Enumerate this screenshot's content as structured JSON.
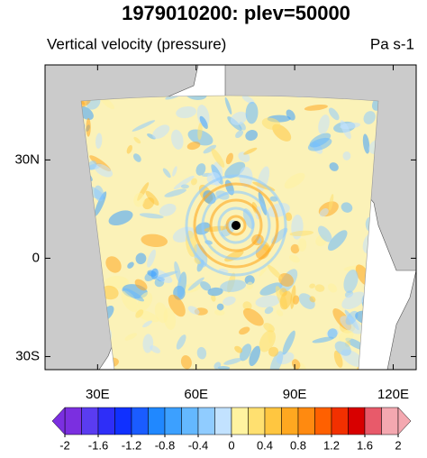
{
  "title": "1979010200: plev=50000",
  "subtitle_left": "Vertical velocity (pressure)",
  "subtitle_right": "Pa s-1",
  "map": {
    "xlim": [
      14,
      127
    ],
    "ylim": [
      -34,
      59
    ],
    "xticks": [
      {
        "value": 30,
        "label": "30E"
      },
      {
        "value": 60,
        "label": "60E"
      },
      {
        "value": 90,
        "label": "90E"
      },
      {
        "value": 120,
        "label": "120E"
      }
    ],
    "yticks": [
      {
        "value": 30,
        "label": "30N"
      },
      0,
      {
        "value": -30,
        "label": "30S"
      }
    ]
  },
  "colorbar": {
    "range": [
      -2,
      2
    ],
    "ticks": [
      -2,
      -1.6,
      -1.2,
      -0.8,
      -0.4,
      0,
      0.4,
      0.8,
      1.2,
      1.6,
      2
    ],
    "colors": [
      "#7b2fe0",
      "#5a3cf0",
      "#2e2ef8",
      "#1030ff",
      "#1a5cff",
      "#2088ff",
      "#3ca0ff",
      "#64b8ff",
      "#90ccff",
      "#c2e2ff",
      "#fff3a0",
      "#ffe070",
      "#ffc640",
      "#ffa820",
      "#ff8a10",
      "#ff6000",
      "#f23000",
      "#d80000",
      "#e85a6a",
      "#f4a8b0"
    ]
  }
}
